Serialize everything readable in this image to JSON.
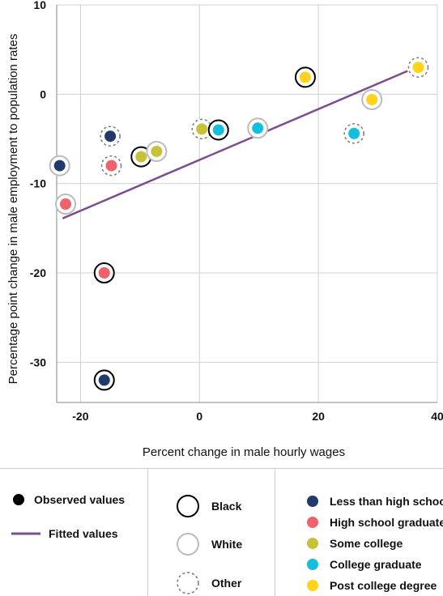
{
  "chart_data": {
    "type": "scatter",
    "xlabel": "Percent change in male hourly wages",
    "ylabel": "Percentage point change in male employment to population rates",
    "xlim": [
      -24,
      40
    ],
    "ylim": [
      -34.5,
      10
    ],
    "xticks": [
      -20,
      0,
      20,
      40
    ],
    "yticks": [
      10,
      0,
      -10,
      -20,
      -30
    ],
    "grid": true,
    "points": [
      {
        "x": -23.5,
        "y": -8.0,
        "education": "Less than high school",
        "race": "White"
      },
      {
        "x": -15.0,
        "y": -4.7,
        "education": "Less than high school",
        "race": "Other"
      },
      {
        "x": -16.0,
        "y": -32.0,
        "education": "Less than high school",
        "race": "Black"
      },
      {
        "x": -22.5,
        "y": -12.3,
        "education": "High school graduate",
        "race": "White"
      },
      {
        "x": -14.8,
        "y": -8.0,
        "education": "High school graduate",
        "race": "Other"
      },
      {
        "x": -16.0,
        "y": -20.0,
        "education": "High school graduate",
        "race": "Black"
      },
      {
        "x": -9.8,
        "y": -7.0,
        "education": "Some college",
        "race": "Black"
      },
      {
        "x": -7.2,
        "y": -6.4,
        "education": "Some college",
        "race": "White"
      },
      {
        "x": 0.4,
        "y": -3.9,
        "education": "Some college",
        "race": "Other"
      },
      {
        "x": 3.2,
        "y": -4.0,
        "education": "College graduate",
        "race": "Black"
      },
      {
        "x": 9.8,
        "y": -3.8,
        "education": "College graduate",
        "race": "White"
      },
      {
        "x": 26.0,
        "y": -4.4,
        "education": "College graduate",
        "race": "Other"
      },
      {
        "x": 17.8,
        "y": 1.9,
        "education": "Post college degree",
        "race": "Black"
      },
      {
        "x": 29.0,
        "y": -0.6,
        "education": "Post college degree",
        "race": "White"
      },
      {
        "x": 36.8,
        "y": 3.0,
        "education": "Post college degree",
        "race": "Other"
      }
    ],
    "fitted_line": {
      "x": [
        -23.0,
        35.0
      ],
      "y": [
        -13.9,
        2.6
      ]
    },
    "education_colors": {
      "Less than high school": "#1f3a6b",
      "High school graduate": "#f0626a",
      "Some college": "#c6c23a",
      "College graduate": "#13bfdd",
      "Post college degree": "#ffd31a"
    },
    "fitted_color": "#7b4e8f",
    "grid_color": "#d0d0d0"
  },
  "legend": {
    "observed": "Observed values",
    "fitted": "Fitted values",
    "black": "Black",
    "white": "White",
    "other": "Other",
    "education": [
      {
        "label": "Less than high school",
        "color": "#1f3a6b"
      },
      {
        "label": "High school graduate",
        "color": "#f0626a"
      },
      {
        "label": "Some college",
        "color": "#c6c23a"
      },
      {
        "label": "College graduate",
        "color": "#13bfdd"
      },
      {
        "label": "Post college degree",
        "color": "#ffd31a"
      }
    ]
  }
}
